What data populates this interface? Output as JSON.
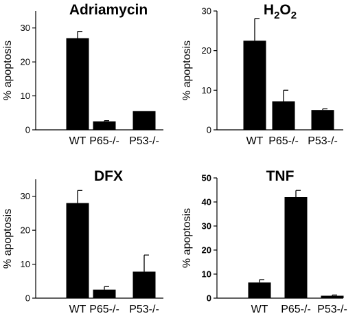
{
  "chart_data": [
    {
      "type": "bar",
      "title": "Adriamycin",
      "ylabel": "% apoptosis",
      "xlabel": "",
      "categories": [
        "WT",
        "P65-/-",
        "P53-/-"
      ],
      "values": [
        27,
        2.5,
        5.5
      ],
      "errors": [
        2,
        0.2,
        0
      ],
      "ylim": [
        0,
        35
      ],
      "yticks": [
        0,
        10,
        20,
        30
      ],
      "grid": false
    },
    {
      "type": "bar",
      "title": "H2O2",
      "title_parts": {
        "base": "H",
        "sub1": "2",
        "mid": "O",
        "sub2": "2"
      },
      "ylabel": "% apoptosis",
      "xlabel": "",
      "categories": [
        "WT",
        "P65-/-",
        "P53-/-"
      ],
      "values": [
        22.5,
        7.2,
        5
      ],
      "errors": [
        5.6,
        2.8,
        0.3
      ],
      "ylim": [
        0,
        30
      ],
      "yticks": [
        0,
        10,
        20,
        30
      ],
      "grid": false
    },
    {
      "type": "bar",
      "title": "DFX",
      "ylabel": "% apoptosis",
      "xlabel": "",
      "categories": [
        "WT",
        "P65-/-",
        "P53-/-"
      ],
      "values": [
        28,
        2.5,
        7.8
      ],
      "errors": [
        3.7,
        0.9,
        4.9
      ],
      "ylim": [
        0,
        35
      ],
      "yticks": [
        0,
        10,
        20,
        30
      ],
      "grid": false
    },
    {
      "type": "bar",
      "title": "TNF",
      "ylabel": "% apoptosis",
      "xlabel": "",
      "categories": [
        "WT",
        "P65-/-",
        "P53-/-"
      ],
      "values": [
        6.5,
        42,
        1
      ],
      "errors": [
        1.2,
        2.8,
        0.3
      ],
      "ylim": [
        0,
        50
      ],
      "yticks": [
        0,
        10,
        20,
        30,
        40,
        50
      ],
      "grid": false
    }
  ],
  "colors": {
    "bar": "#000000",
    "axis": "#000000",
    "background": "#ffffff"
  }
}
